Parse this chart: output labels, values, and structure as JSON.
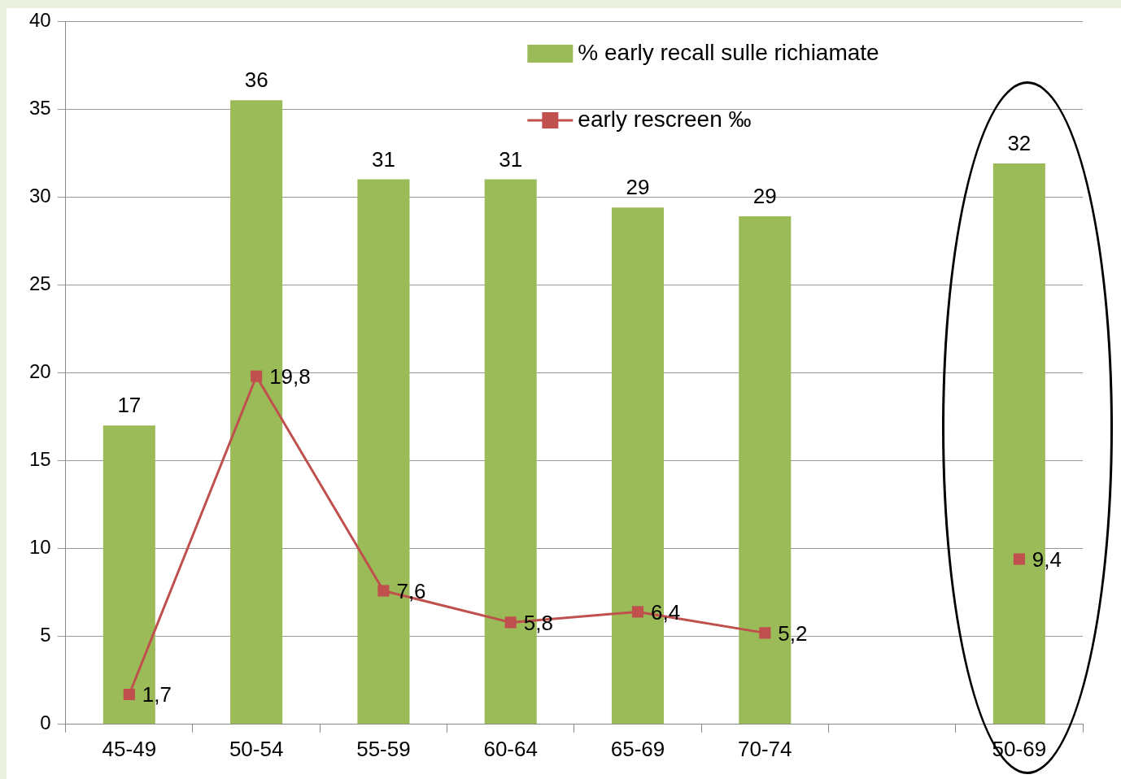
{
  "chart_data": {
    "type": "bar",
    "categories": [
      "45-49",
      "50-54",
      "55-59",
      "60-64",
      "65-69",
      "70-74",
      null,
      "50-69"
    ],
    "series": [
      {
        "name": "% early recall sulle richiamate",
        "color": "#9bbb59",
        "values": [
          17,
          35.5,
          31,
          31,
          29.4,
          28.9,
          null,
          31.9
        ],
        "value_labels": [
          "17",
          "36",
          "31",
          "31",
          "29",
          "29",
          null,
          "32"
        ]
      },
      {
        "name": "early rescreen ‰",
        "type": "line",
        "color": "#c0504d",
        "values": [
          1.7,
          19.8,
          7.6,
          5.8,
          6.4,
          5.2,
          null,
          9.4
        ],
        "value_labels": [
          "1,7",
          "19,8",
          "7,6",
          "5,8",
          "6,4",
          "5,2",
          null,
          "9,4"
        ]
      }
    ],
    "ylim": [
      0,
      40
    ],
    "yticks": [
      0,
      5,
      10,
      15,
      20,
      25,
      30,
      35,
      40
    ],
    "grid": "y",
    "legend": "top right",
    "marker": "square",
    "line_style": "solid"
  }
}
